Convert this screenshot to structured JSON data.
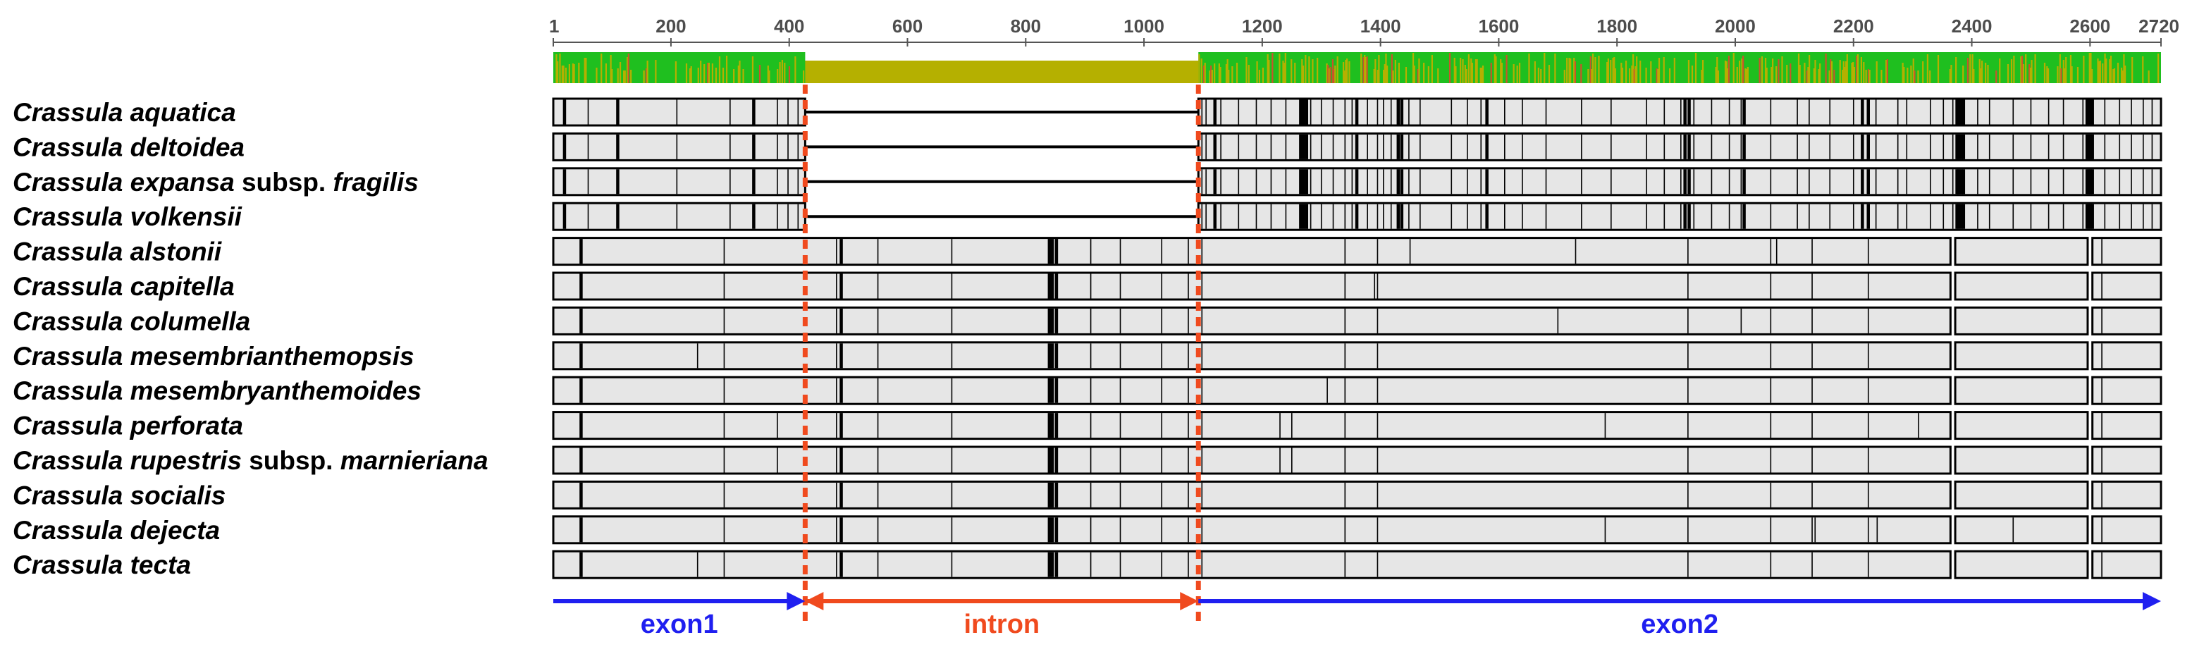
{
  "figure": {
    "type": "sequence-alignment-diagram",
    "axis": {
      "min": 1,
      "max": 2720,
      "ticks": [
        1,
        200,
        400,
        600,
        800,
        1000,
        1200,
        1400,
        1600,
        1800,
        2000,
        2200,
        2400,
        2600,
        2720
      ]
    },
    "region_boundaries": [
      427,
      1092
    ],
    "regions": [
      {
        "name": "exon1",
        "start": 1,
        "end": 427,
        "color": "#1f1ff0"
      },
      {
        "name": "intron",
        "start": 427,
        "end": 1092,
        "color": "#f04a1e"
      },
      {
        "name": "exon2",
        "start": 1092,
        "end": 2720,
        "color": "#1f1ff0"
      }
    ],
    "conservation": {
      "low_color": "#b5b000",
      "high_color": "#1fbf1f",
      "intron_mostly_low": true
    },
    "colors": {
      "bar_fill": "#e6e6e6",
      "bar_stroke": "#000000",
      "boundary_line": "#f04a1e"
    },
    "taxa": [
      {
        "genus": "Crassula",
        "epithet": "aquatica",
        "rank": "",
        "infra": "",
        "intron_missing": true,
        "group": "A"
      },
      {
        "genus": "Crassula",
        "epithet": "deltoidea",
        "rank": "",
        "infra": "",
        "intron_missing": true,
        "group": "A"
      },
      {
        "genus": "Crassula",
        "epithet": "expansa",
        "rank": "subsp.",
        "infra": "fragilis",
        "intron_missing": true,
        "group": "A"
      },
      {
        "genus": "Crassula",
        "epithet": "volkensii",
        "rank": "",
        "infra": "",
        "intron_missing": true,
        "group": "A"
      },
      {
        "genus": "Crassula",
        "epithet": "alstonii",
        "rank": "",
        "infra": "",
        "intron_missing": false,
        "group": "B"
      },
      {
        "genus": "Crassula",
        "epithet": "capitella",
        "rank": "",
        "infra": "",
        "intron_missing": false,
        "group": "B"
      },
      {
        "genus": "Crassula",
        "epithet": "columella",
        "rank": "",
        "infra": "",
        "intron_missing": false,
        "group": "B"
      },
      {
        "genus": "Crassula",
        "epithet": "mesembrianthemopsis",
        "rank": "",
        "infra": "",
        "intron_missing": false,
        "group": "B"
      },
      {
        "genus": "Crassula",
        "epithet": "mesembryanthemoides",
        "rank": "",
        "infra": "",
        "intron_missing": false,
        "group": "B"
      },
      {
        "genus": "Crassula",
        "epithet": "perforata",
        "rank": "",
        "infra": "",
        "intron_missing": false,
        "group": "B"
      },
      {
        "genus": "Crassula",
        "epithet": "rupestris",
        "rank": "subsp.",
        "infra": "marnieriana",
        "intron_missing": false,
        "group": "B"
      },
      {
        "genus": "Crassula",
        "epithet": "socialis",
        "rank": "",
        "infra": "",
        "intron_missing": false,
        "group": "B"
      },
      {
        "genus": "Crassula",
        "epithet": "dejecta",
        "rank": "",
        "infra": "",
        "intron_missing": false,
        "group": "B"
      },
      {
        "genus": "Crassula",
        "epithet": "tecta",
        "rank": "",
        "infra": "",
        "intron_missing": false,
        "group": "B"
      }
    ],
    "variable_sites": {
      "A": {
        "thin": [
          60,
          210,
          300,
          380,
          398,
          415,
          1098,
          1105,
          1130,
          1160,
          1190,
          1215,
          1240,
          1282,
          1300,
          1320,
          1340,
          1352,
          1378,
          1395,
          1405,
          1418,
          1448,
          1467,
          1520,
          1547,
          1570,
          1610,
          1640,
          1680,
          1740,
          1790,
          1850,
          1880,
          1908,
          1930,
          1960,
          1990,
          2010,
          2060,
          2105,
          2125,
          2160,
          2200,
          2238,
          2275,
          2290,
          2330,
          2352,
          2368,
          2410,
          2430,
          2470,
          2500,
          2530,
          2555,
          2588,
          2625,
          2650,
          2670,
          2690,
          2705
        ],
        "thick": [
          20,
          110,
          340,
          1120,
          1265,
          1270,
          1275,
          1360,
          1430,
          1436,
          1580,
          1915,
          1922,
          2015,
          2215,
          2225,
          2375,
          2378,
          2382,
          2386,
          2595,
          2598,
          2601,
          2604
        ],
        "gap": []
      },
      "B": {
        "thin": [
          290,
          480,
          550,
          675,
          910,
          960,
          1030,
          1075,
          1098,
          1340,
          1395,
          1920,
          2060,
          2130,
          2225,
          2620
        ],
        "thick": [
          48,
          488,
          840,
          845,
          852,
          2368,
          2597,
          2603
        ],
        "gap": [
          2368,
          2600
        ]
      }
    },
    "row_extras": [
      {
        "row": 4,
        "thin": [
          1450,
          1730,
          2070
        ]
      },
      {
        "row": 5,
        "thin": [
          1390
        ]
      },
      {
        "row": 6,
        "thin": [
          1700,
          2010
        ]
      },
      {
        "row": 7,
        "thin": [
          245
        ]
      },
      {
        "row": 8,
        "thin": [
          1310
        ]
      },
      {
        "row": 9,
        "thin": [
          380,
          1230,
          1250,
          1780,
          2310
        ]
      },
      {
        "row": 10,
        "thin": [
          380,
          1230,
          1250
        ]
      },
      {
        "row": 12,
        "thin": [
          1780,
          2135,
          2240,
          2470
        ]
      },
      {
        "row": 13,
        "thin": [
          245
        ]
      }
    ]
  }
}
